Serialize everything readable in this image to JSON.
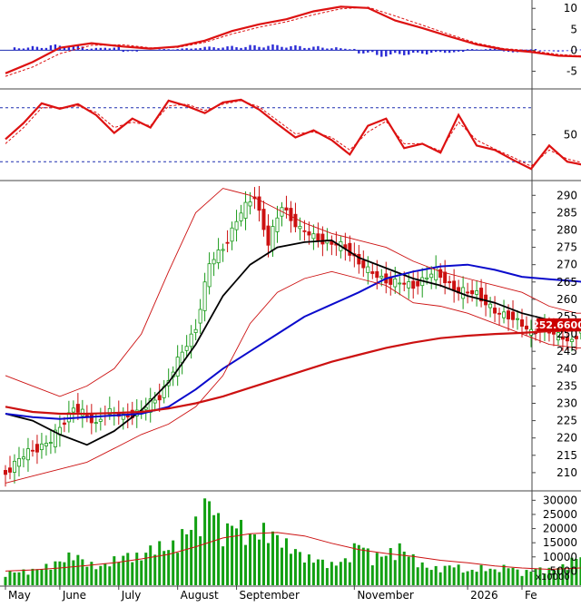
{
  "chart_data": [
    {
      "panel": "macd",
      "type": "line",
      "y_ticks": [
        "10",
        "5",
        "0",
        "-5"
      ],
      "ylim": [
        -9,
        12
      ],
      "colors": {
        "macd": "#dd1111",
        "signal": "#dd1111",
        "histogram": "#2b2bd6"
      },
      "series": [
        {
          "role": "macd",
          "x": [
            0,
            6,
            12,
            19,
            26,
            32,
            38,
            44,
            50,
            56,
            62,
            68,
            74,
            80,
            86,
            92,
            98,
            104,
            110,
            116,
            122,
            128,
            135
          ],
          "y": [
            -5.5,
            -2.8,
            0.6,
            1.7,
            0.9,
            0.4,
            0.9,
            2.3,
            4.6,
            6.2,
            7.4,
            9.3,
            10.4,
            10.1,
            7.1,
            5.3,
            3.3,
            1.4,
            0.2,
            -0.4,
            -1.3,
            -1.5,
            -1.2
          ]
        },
        {
          "role": "signal",
          "x": [
            0,
            6,
            12,
            19,
            26,
            32,
            38,
            44,
            50,
            56,
            62,
            68,
            74,
            80,
            86,
            92,
            98,
            104,
            110,
            116,
            122,
            128,
            135
          ],
          "y": [
            -6.2,
            -4.0,
            -0.8,
            1.2,
            1.3,
            0.6,
            0.7,
            1.9,
            3.9,
            5.5,
            6.8,
            8.5,
            9.9,
            10.3,
            8.2,
            6.0,
            3.8,
            1.7,
            0.4,
            -0.1,
            -1.0,
            -1.4,
            -1.3
          ]
        },
        {
          "role": "histogram",
          "x": [
            2,
            6,
            10,
            14,
            18,
            22,
            26,
            34,
            38,
            42,
            46,
            50,
            54,
            58,
            62,
            66,
            70,
            74,
            78,
            82,
            86,
            90,
            94,
            98,
            102,
            106,
            110,
            114,
            118,
            122,
            126,
            130,
            134
          ],
          "y": [
            0.8,
            1.0,
            1.4,
            1.2,
            0.6,
            0.9,
            -0.4,
            0.3,
            0.5,
            0.9,
            1.0,
            1.1,
            1.3,
            1.4,
            1.2,
            1.0,
            0.8,
            0.5,
            -0.8,
            -1.6,
            -1.2,
            -1.0,
            -0.7,
            -0.6,
            0.3,
            0.4,
            -0.5,
            0.3,
            -0.3,
            -0.3,
            0.2,
            0.5,
            0.6
          ]
        }
      ]
    },
    {
      "panel": "rsi",
      "type": "line",
      "y_ticks": [
        "50"
      ],
      "ylim": [
        0,
        100
      ],
      "reference_lines": [
        80,
        20
      ],
      "colors": {
        "rsi": "#dd1111",
        "signal": "#dd1111",
        "reference": "#1f2fb0"
      },
      "series": [
        {
          "role": "rsi",
          "x": [
            0,
            4,
            8,
            12,
            16,
            20,
            24,
            28,
            32,
            36,
            40,
            44,
            48,
            52,
            56,
            60,
            64,
            68,
            72,
            76,
            80,
            84,
            88,
            92,
            96,
            100,
            104,
            108,
            112,
            116,
            120,
            124,
            128,
            132,
            135
          ],
          "y": [
            45,
            63,
            85,
            79,
            84,
            72,
            52,
            68,
            58,
            88,
            82,
            74,
            86,
            89,
            78,
            62,
            47,
            55,
            44,
            28,
            60,
            68,
            35,
            40,
            30,
            72,
            38,
            33,
            22,
            12,
            38,
            20,
            16,
            62,
            68
          ]
        },
        {
          "role": "signal",
          "x": [
            0,
            4,
            8,
            12,
            16,
            20,
            24,
            28,
            32,
            36,
            40,
            44,
            48,
            52,
            56,
            60,
            64,
            68,
            72,
            76,
            80,
            84,
            88,
            92,
            96,
            100,
            104,
            108,
            112,
            116,
            120,
            124,
            128,
            132,
            135
          ],
          "y": [
            40,
            58,
            80,
            80,
            82,
            75,
            58,
            64,
            60,
            82,
            84,
            77,
            84,
            88,
            81,
            66,
            51,
            53,
            47,
            33,
            53,
            65,
            40,
            40,
            32,
            64,
            44,
            34,
            25,
            15,
            33,
            23,
            18,
            54,
            66
          ]
        }
      ]
    },
    {
      "panel": "price",
      "type": "candlestick",
      "y_ticks": [
        "290",
        "285",
        "280",
        "275",
        "270",
        "265",
        "260",
        "255",
        "250",
        "245",
        "240",
        "235",
        "230",
        "225",
        "220",
        "215",
        "210"
      ],
      "ylim": [
        205,
        294
      ],
      "last_price_label": "252.6600",
      "colors": {
        "up": "#1a9a1a",
        "down": "#cc1111",
        "ma_short": "#000000",
        "ma_mid": "#0a0acc",
        "ma_long": "#cc1111",
        "bands": "#cc1111",
        "tag": "#cc0000"
      },
      "price_path": {
        "x": [
          0,
          5,
          10,
          15,
          20,
          22,
          26,
          30,
          34,
          38,
          42,
          45,
          48,
          52,
          55,
          58,
          61,
          65,
          68,
          72,
          75,
          80,
          85,
          90,
          95,
          100,
          104,
          108,
          112,
          116,
          119,
          122,
          125,
          128,
          131,
          133,
          135
        ],
        "y": [
          210,
          216,
          219,
          229,
          224,
          228,
          226,
          228,
          232,
          242,
          252,
          270,
          275,
          285,
          290,
          276,
          287,
          280,
          278,
          276,
          275,
          268,
          265,
          264,
          268,
          262,
          262,
          256,
          255,
          250,
          252,
          249,
          248,
          253,
          254,
          252.5,
          252.66
        ]
      },
      "overlays": [
        {
          "role": "ma_short",
          "x": [
            0,
            6,
            12,
            18,
            24,
            30,
            36,
            42,
            48,
            54,
            60,
            66,
            72,
            78,
            84,
            90,
            96,
            102,
            108,
            114,
            120,
            126,
            132,
            135
          ],
          "y": [
            227,
            225,
            221,
            218,
            222,
            228,
            236,
            247,
            261,
            270,
            275,
            276.5,
            277,
            272,
            269,
            266,
            264,
            261,
            259,
            256,
            254,
            252,
            252.5,
            252.66
          ]
        },
        {
          "role": "ma_mid",
          "x": [
            0,
            6,
            12,
            18,
            24,
            30,
            36,
            42,
            48,
            54,
            60,
            66,
            72,
            78,
            84,
            90,
            96,
            102,
            108,
            114,
            120,
            126,
            132,
            135
          ],
          "y": [
            227,
            226,
            225.5,
            226,
            226.5,
            227,
            229,
            234,
            240,
            245,
            250,
            255,
            258.5,
            262,
            266,
            268,
            269.5,
            270,
            268.5,
            266.5,
            265.8,
            265.2,
            264.5,
            264.3
          ]
        },
        {
          "role": "ma_long",
          "x": [
            0,
            6,
            12,
            18,
            24,
            30,
            36,
            42,
            48,
            54,
            60,
            66,
            72,
            78,
            84,
            90,
            96,
            102,
            108,
            114,
            120,
            126,
            132,
            135
          ],
          "y": [
            229,
            227.5,
            227,
            227,
            227.2,
            227.5,
            228.5,
            230,
            232,
            234.5,
            237,
            239.5,
            242,
            244,
            246,
            247.5,
            248.8,
            249.5,
            250,
            250.3,
            250.8,
            251,
            251.3,
            251.5
          ]
        },
        {
          "role": "band_upper",
          "x": [
            0,
            6,
            12,
            18,
            24,
            30,
            36,
            42,
            48,
            54,
            60,
            66,
            72,
            78,
            84,
            90,
            96,
            102,
            108,
            114,
            120,
            126,
            132,
            135
          ],
          "y": [
            238,
            235,
            232,
            235,
            240,
            250,
            268,
            285,
            292,
            290,
            286,
            282,
            279,
            277,
            275,
            271,
            268,
            266,
            264,
            262,
            258,
            256,
            256,
            256
          ]
        },
        {
          "role": "band_lower",
          "x": [
            0,
            6,
            12,
            18,
            24,
            30,
            36,
            42,
            48,
            54,
            60,
            66,
            72,
            78,
            84,
            90,
            96,
            102,
            108,
            114,
            120,
            126,
            132,
            135
          ],
          "y": [
            207,
            209,
            211,
            213,
            217,
            221,
            224,
            229,
            238,
            253,
            262,
            266,
            268,
            266,
            264,
            259,
            258,
            256,
            253,
            250,
            247,
            246,
            246,
            246
          ]
        }
      ]
    },
    {
      "panel": "volume",
      "type": "bar",
      "unit_label": "x10000",
      "y_ticks": [
        "30000",
        "25000",
        "20000",
        "15000",
        "10000",
        "5000"
      ],
      "ylim": [
        0,
        33000
      ],
      "colors": {
        "bars": "#12a012",
        "average": "#cc1111"
      },
      "series": [
        {
          "role": "volume",
          "x": [
            0,
            3,
            6,
            9,
            12,
            15,
            18,
            21,
            24,
            27,
            30,
            33,
            36,
            39,
            42,
            45,
            48,
            51,
            54,
            57,
            60,
            63,
            66,
            69,
            72,
            75,
            78,
            81,
            84,
            87,
            90,
            93,
            96,
            99,
            102,
            105,
            108,
            111,
            114,
            117,
            120,
            123,
            126,
            129,
            132,
            135
          ],
          "y": [
            4200,
            4800,
            5200,
            6600,
            8200,
            11000,
            7600,
            6400,
            8900,
            10500,
            9800,
            14200,
            12500,
            17500,
            21500,
            30200,
            18500,
            22000,
            16500,
            19200,
            16800,
            13200,
            9800,
            8800,
            7200,
            8600,
            15200,
            9800,
            10800,
            13200,
            9600,
            6100,
            5800,
            7200,
            4600,
            6200,
            5200,
            6800,
            4200,
            5800,
            5400,
            6600,
            9600,
            11800,
            10500,
            11200
          ]
        },
        {
          "role": "average",
          "x": [
            0,
            6,
            12,
            18,
            24,
            30,
            36,
            42,
            48,
            54,
            60,
            66,
            72,
            78,
            84,
            90,
            96,
            102,
            108,
            114,
            120,
            126,
            132,
            135
          ],
          "y": [
            5000,
            5400,
            6100,
            7000,
            7900,
            9300,
            10900,
            13600,
            16700,
            18200,
            18600,
            17400,
            14800,
            12600,
            11200,
            10200,
            8800,
            7900,
            6800,
            6100,
            5600,
            6000,
            6800,
            7200
          ]
        }
      ]
    }
  ],
  "x_axis": {
    "labels": [
      "May",
      "June",
      "July",
      "August",
      "September",
      "November",
      "2026",
      "Fe"
    ],
    "label_index": [
      0,
      12,
      25,
      38,
      51,
      77,
      102,
      114
    ],
    "x_span": [
      0,
      115
    ]
  }
}
